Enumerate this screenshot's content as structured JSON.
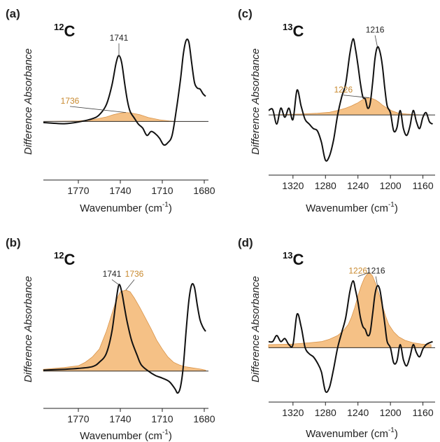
{
  "chart_data": [
    {
      "type": "line",
      "panel_label": "(a)",
      "isotope": {
        "mass": "12",
        "element": "C"
      },
      "xlabel": "Wavenumber (cm",
      "xlabel_sup": "-1",
      "xlabel_close": ")",
      "ylabel": "Difference Absorbance",
      "xlim": [
        1795,
        1677
      ],
      "ylim": [
        -1.0,
        1.7
      ],
      "xticks": [
        1770,
        1740,
        1710,
        1680
      ],
      "xtick_labels": [
        "1770",
        "1740",
        "1710",
        "1680"
      ],
      "baseline": 0,
      "colors": {
        "black": "#111111",
        "fill": "#f5c186",
        "fill_edge": "#d9944a",
        "orange_text": "#c8892e"
      },
      "series": [
        {
          "role": "black-line",
          "x": [
            1795,
            1780,
            1770,
            1760,
            1755,
            1750,
            1746,
            1743,
            1741,
            1739,
            1737,
            1735,
            1733,
            1730,
            1727,
            1724,
            1721,
            1718,
            1715,
            1712,
            1709,
            1706,
            1703,
            1700,
            1697,
            1695,
            1693,
            1691,
            1689,
            1687,
            1685,
            1683,
            1681,
            1679
          ],
          "y": [
            -0.02,
            -0.04,
            -0.01,
            0.05,
            0.12,
            0.3,
            0.65,
            1.05,
            1.18,
            1.05,
            0.7,
            0.38,
            0.18,
            0.06,
            -0.05,
            -0.12,
            -0.25,
            -0.18,
            -0.22,
            -0.3,
            -0.42,
            -0.38,
            -0.25,
            0.2,
            0.75,
            1.2,
            1.45,
            1.42,
            1.05,
            0.7,
            0.6,
            0.58,
            0.5,
            0.45
          ]
        },
        {
          "role": "orange-fill",
          "x": [
            1795,
            1770,
            1760,
            1750,
            1745,
            1740,
            1736,
            1732,
            1726,
            1720,
            1712,
            1705,
            1700,
            1695,
            1690,
            1685,
            1679
          ],
          "y": [
            0.0,
            0.01,
            0.03,
            0.08,
            0.12,
            0.15,
            0.16,
            0.15,
            0.12,
            0.07,
            0.03,
            0.01,
            0.0,
            0.0,
            0.0,
            0.0,
            0.0
          ]
        }
      ],
      "annotations": [
        {
          "label": "1741",
          "color": "black",
          "x": 1741,
          "y": 1.18,
          "tx": 1741,
          "ty": 1.45
        },
        {
          "label": "1736",
          "color": "orange",
          "x": 1736,
          "y": 0.16,
          "tx": 1776,
          "ty": 0.32
        }
      ]
    },
    {
      "type": "line",
      "panel_label": "(b)",
      "isotope": {
        "mass": "12",
        "element": "C"
      },
      "xlabel": "Wavenumber (cm",
      "xlabel_sup": "-1",
      "xlabel_close": ")",
      "ylabel": "Difference Absorbance",
      "xlim": [
        1795,
        1677
      ],
      "ylim": [
        -0.4,
        1.35
      ],
      "xticks": [
        1770,
        1740,
        1710,
        1680
      ],
      "xtick_labels": [
        "1770",
        "1740",
        "1710",
        "1680"
      ],
      "baseline": 0,
      "colors": {
        "black": "#111111",
        "fill": "#f5c186",
        "fill_edge": "#d9944a",
        "orange_text": "#c8892e"
      },
      "series": [
        {
          "role": "black-line",
          "x": [
            1795,
            1780,
            1770,
            1760,
            1755,
            1750,
            1746,
            1743,
            1741,
            1739,
            1737,
            1735,
            1732,
            1728,
            1725,
            1720,
            1715,
            1710,
            1705,
            1701,
            1699,
            1697,
            1695,
            1693,
            1691,
            1689,
            1687,
            1685,
            1683,
            1681,
            1679
          ],
          "y": [
            0.01,
            0.02,
            0.03,
            0.05,
            0.1,
            0.2,
            0.45,
            0.8,
            0.98,
            0.9,
            0.72,
            0.55,
            0.35,
            0.18,
            0.07,
            0.0,
            -0.05,
            -0.08,
            -0.12,
            -0.2,
            -0.25,
            -0.18,
            0.05,
            0.45,
            0.8,
            0.98,
            0.95,
            0.75,
            0.58,
            0.5,
            0.45
          ]
        },
        {
          "role": "orange-fill",
          "x": [
            1795,
            1780,
            1770,
            1765,
            1760,
            1755,
            1750,
            1746,
            1743,
            1740,
            1736,
            1733,
            1730,
            1726,
            1722,
            1718,
            1714,
            1710,
            1706,
            1702,
            1698,
            1694,
            1690,
            1686,
            1682,
            1679
          ],
          "y": [
            0.02,
            0.04,
            0.06,
            0.1,
            0.16,
            0.25,
            0.45,
            0.65,
            0.8,
            0.9,
            0.92,
            0.9,
            0.83,
            0.72,
            0.6,
            0.48,
            0.35,
            0.25,
            0.16,
            0.1,
            0.07,
            0.05,
            0.04,
            0.03,
            0.02,
            0.01
          ]
        }
      ],
      "annotations": [
        {
          "label": "1741",
          "color": "black",
          "x": 1741,
          "y": 0.98,
          "tx": 1746,
          "ty": 1.07
        },
        {
          "label": "1736",
          "color": "orange",
          "x": 1736,
          "y": 0.92,
          "tx": 1730,
          "ty": 1.07
        }
      ]
    },
    {
      "type": "line",
      "panel_label": "(c)",
      "isotope": {
        "mass": "13",
        "element": "C"
      },
      "xlabel": "Wavenumber (cm",
      "xlabel_sup": "-1",
      "xlabel_close": ")",
      "ylabel": "Difference Absorbance",
      "xlim": [
        1350,
        1145
      ],
      "ylim": [
        -1.25,
        1.95
      ],
      "xticks": [
        1320,
        1280,
        1240,
        1200,
        1160
      ],
      "xtick_labels": [
        "1320",
        "1280",
        "1240",
        "1200",
        "1160"
      ],
      "baseline": 0,
      "colors": {
        "black": "#111111",
        "fill": "#f5c186",
        "fill_edge": "#d9944a",
        "orange_text": "#c8892e"
      },
      "series": [
        {
          "role": "black-line",
          "x": [
            1350,
            1345,
            1340,
            1335,
            1330,
            1325,
            1320,
            1315,
            1310,
            1305,
            1300,
            1295,
            1290,
            1285,
            1280,
            1275,
            1270,
            1265,
            1260,
            1255,
            1250,
            1246,
            1243,
            1240,
            1237,
            1234,
            1231,
            1228,
            1225,
            1222,
            1219,
            1216,
            1213,
            1210,
            1207,
            1204,
            1200,
            1196,
            1192,
            1188,
            1184,
            1180,
            1176,
            1172,
            1168,
            1164,
            1160,
            1156,
            1152,
            1148
          ],
          "y": [
            0.1,
            0.12,
            -0.2,
            0.15,
            -0.05,
            0.15,
            -0.1,
            0.55,
            0.2,
            -0.1,
            -0.2,
            -0.3,
            -0.35,
            -0.6,
            -1.0,
            -0.9,
            -0.55,
            0.0,
            0.4,
            0.7,
            1.35,
            1.68,
            1.45,
            1.1,
            0.7,
            0.4,
            0.35,
            0.15,
            0.25,
            0.7,
            1.25,
            1.5,
            1.4,
            1.1,
            0.6,
            0.2,
            0.05,
            -0.35,
            -0.28,
            0.1,
            -0.3,
            -0.45,
            -0.25,
            0.1,
            -0.15,
            -0.3,
            -0.05,
            0.05,
            -0.15,
            -0.2
          ]
        },
        {
          "role": "orange-fill",
          "x": [
            1350,
            1310,
            1290,
            1275,
            1265,
            1255,
            1248,
            1240,
            1235,
            1230,
            1226,
            1222,
            1218,
            1214,
            1210,
            1204,
            1198,
            1190,
            1180,
            1170,
            1160,
            1150
          ],
          "y": [
            0.0,
            0.02,
            0.04,
            0.06,
            0.1,
            0.15,
            0.2,
            0.27,
            0.33,
            0.37,
            0.38,
            0.36,
            0.33,
            0.28,
            0.22,
            0.15,
            0.09,
            0.04,
            0.02,
            0.01,
            0.0,
            0.0
          ]
        }
      ],
      "annotations": [
        {
          "label": "1216",
          "color": "black",
          "x": 1216,
          "y": 1.5,
          "tx": 1219,
          "ty": 1.82
        },
        {
          "label": "1226",
          "color": "orange",
          "x": 1226,
          "y": 0.38,
          "tx": 1258,
          "ty": 0.5
        }
      ]
    },
    {
      "type": "line",
      "panel_label": "(d)",
      "isotope": {
        "mass": "13",
        "element": "C"
      },
      "xlabel": "Wavenumber (cm",
      "xlabel_sup": "-1",
      "xlabel_close": ")",
      "ylabel": "Difference Absorbance",
      "xlim": [
        1350,
        1145
      ],
      "ylim": [
        -0.85,
        1.55
      ],
      "xticks": [
        1320,
        1280,
        1240,
        1200,
        1160
      ],
      "xtick_labels": [
        "1320",
        "1280",
        "1240",
        "1200",
        "1160"
      ],
      "baseline": 0,
      "colors": {
        "black": "#111111",
        "fill": "#f5c186",
        "fill_edge": "#d9944a",
        "orange_text": "#c8892e"
      },
      "series": [
        {
          "role": "black-line",
          "x": [
            1350,
            1345,
            1340,
            1335,
            1330,
            1325,
            1320,
            1315,
            1310,
            1305,
            1300,
            1295,
            1290,
            1285,
            1280,
            1275,
            1270,
            1265,
            1260,
            1255,
            1250,
            1246,
            1243,
            1240,
            1237,
            1234,
            1231,
            1228,
            1225,
            1222,
            1219,
            1216,
            1213,
            1210,
            1207,
            1204,
            1200,
            1196,
            1192,
            1188,
            1184,
            1180,
            1176,
            1172,
            1168,
            1164,
            1160,
            1156,
            1152,
            1148
          ],
          "y": [
            0.1,
            0.1,
            0.2,
            0.1,
            0.15,
            0.05,
            0.05,
            0.55,
            0.35,
            0.0,
            -0.1,
            -0.15,
            -0.25,
            -0.4,
            -0.72,
            -0.65,
            -0.35,
            0.0,
            0.25,
            0.5,
            0.92,
            1.1,
            0.95,
            0.75,
            0.5,
            0.35,
            0.3,
            0.2,
            0.25,
            0.55,
            0.88,
            1.02,
            0.95,
            0.7,
            0.4,
            0.1,
            0.0,
            -0.25,
            -0.22,
            0.05,
            -0.2,
            -0.3,
            -0.15,
            0.05,
            -0.08,
            -0.15,
            -0.02,
            0.05,
            0.08,
            0.1
          ]
        },
        {
          "role": "orange-fill",
          "x": [
            1350,
            1320,
            1300,
            1285,
            1275,
            1265,
            1258,
            1252,
            1248,
            1244,
            1240,
            1236,
            1232,
            1228,
            1226,
            1222,
            1218,
            1214,
            1210,
            1206,
            1202,
            1196,
            1190,
            1182,
            1172,
            1162,
            1150
          ],
          "y": [
            0.05,
            0.06,
            0.08,
            0.1,
            0.14,
            0.2,
            0.28,
            0.38,
            0.5,
            0.66,
            0.85,
            1.02,
            1.15,
            1.22,
            1.24,
            1.18,
            1.05,
            0.88,
            0.7,
            0.52,
            0.38,
            0.26,
            0.18,
            0.12,
            0.08,
            0.06,
            0.05
          ]
        }
      ],
      "annotations": [
        {
          "label": "1216",
          "color": "black",
          "x": 1216,
          "y": 1.02,
          "tx": 1218,
          "ty": 1.22
        },
        {
          "label": "1226",
          "color": "orange",
          "x": 1226,
          "y": 1.24,
          "tx": 1240,
          "ty": 1.22
        }
      ]
    }
  ]
}
